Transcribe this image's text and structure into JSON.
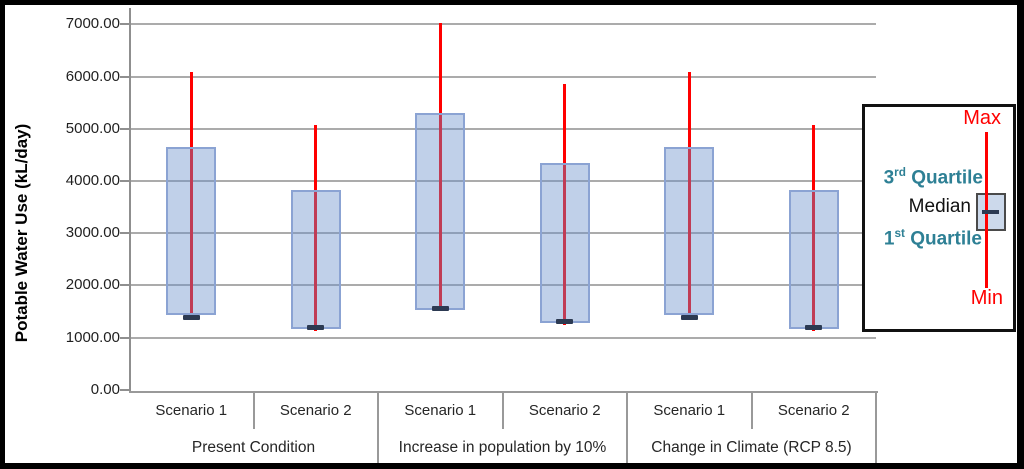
{
  "y_axis": {
    "title": "Potable Water Use (kL/day)",
    "tick_labels": [
      "7000.00",
      "6000.00",
      "5000.00",
      "4000.00",
      "3000.00",
      "2000.00",
      "1000.00",
      "0.00"
    ]
  },
  "legend": {
    "max": "Max",
    "min": "Min",
    "q3_num": "3",
    "q3_sup": "rd",
    "q3_word": " Quartile",
    "median": "Median",
    "q1_num": "1",
    "q1_sup": "st",
    "q1_word": " Quartile"
  },
  "chart_data": {
    "type": "boxplot",
    "title": "",
    "ylabel": "Potable Water Use (kL/day)",
    "ylim": [
      0,
      7000
    ],
    "ytick_interval": 1000,
    "grid": "horizontal",
    "legend_position": "right",
    "groups": [
      {
        "label": "Present Condition",
        "categories": [
          "Scenario 1",
          "Scenario 2"
        ]
      },
      {
        "label": "Increase in population by 10%",
        "categories": [
          "Scenario 1",
          "Scenario 2"
        ]
      },
      {
        "label": "Change in Climate (RCP 8.5)",
        "categories": [
          "Scenario 1",
          "Scenario 2"
        ]
      }
    ],
    "series": [
      {
        "group": "Present Condition",
        "category": "Scenario 1",
        "min": 1350,
        "q1": 1440,
        "median": 1390,
        "q3": 4640,
        "max": 6090
      },
      {
        "group": "Present Condition",
        "category": "Scenario 2",
        "min": 1130,
        "q1": 1160,
        "median": 1190,
        "q3": 3830,
        "max": 5070
      },
      {
        "group": "Increase in population by 10%",
        "category": "Scenario 1",
        "min": 1500,
        "q1": 1530,
        "median": 1560,
        "q3": 5300,
        "max": 7020
      },
      {
        "group": "Increase in population by 10%",
        "category": "Scenario 2",
        "min": 1240,
        "q1": 1270,
        "median": 1300,
        "q3": 4350,
        "max": 5860
      },
      {
        "group": "Change in Climate (RCP 8.5)",
        "category": "Scenario 1",
        "min": 1350,
        "q1": 1440,
        "median": 1390,
        "q3": 4640,
        "max": 6090
      },
      {
        "group": "Change in Climate (RCP 8.5)",
        "category": "Scenario 2",
        "min": 1130,
        "q1": 1160,
        "median": 1190,
        "q3": 3830,
        "max": 5070
      }
    ]
  },
  "colors": {
    "whisker": "#ff0000",
    "box_fill": "rgba(104,142,202,0.42)",
    "box_border": "#8ba3d3",
    "median_dash": "#2c3a52",
    "gridline": "#ababab",
    "axis": "#8f8f8f",
    "legend_teal": "#2e8095",
    "legend_red": "#ff0000",
    "text": "#262626"
  }
}
